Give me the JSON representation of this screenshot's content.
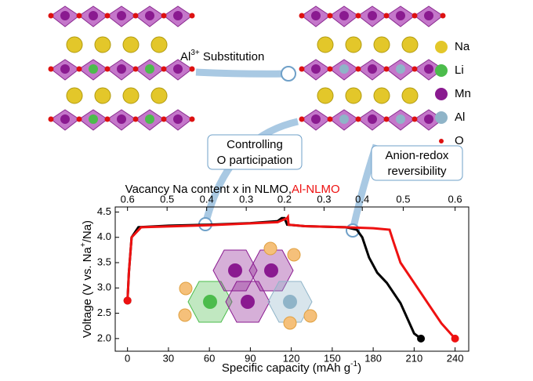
{
  "legend_atoms": [
    "Na",
    "Li",
    "Mn",
    "Al",
    "O"
  ],
  "annotations": {
    "substitution": [
      "Al",
      "3+",
      " Substitution"
    ],
    "controlling": [
      "Controlling",
      "O participation"
    ],
    "anion": [
      "Anion-redox",
      "reversibility"
    ]
  },
  "chart_data": {
    "type": "line",
    "top_axis_label": [
      "Vacancy Na content x in NLMO, ",
      "Al-NLMO"
    ],
    "xlabel": [
      "Specific capacity (mAh g",
      "-1",
      ")"
    ],
    "ylabel": [
      "Voltage (V vs. Na",
      "+",
      "/Na)"
    ],
    "xlim": [
      -9,
      250
    ],
    "ylim": [
      1.75,
      4.6
    ],
    "xticks": [
      0,
      30,
      60,
      90,
      120,
      150,
      180,
      210,
      240
    ],
    "x2ticks": [
      {
        "value": 0,
        "label": "0.6"
      },
      {
        "value": 29,
        "label": "0.5"
      },
      {
        "value": 58,
        "label": "0.4"
      },
      {
        "value": 87,
        "label": "0.3"
      },
      {
        "value": 115,
        "label": "0.2"
      },
      {
        "value": 144,
        "label": "0.3"
      },
      {
        "value": 172,
        "label": "0.4"
      },
      {
        "value": 202,
        "label": "0.5"
      },
      {
        "value": 240,
        "label": "0.6"
      }
    ],
    "yticks": [
      {
        "value": 2.0,
        "label": "2.0"
      },
      {
        "value": 2.5,
        "label": "2.5"
      },
      {
        "value": 3.0,
        "label": "3.0"
      },
      {
        "value": 3.5,
        "label": "3.5"
      },
      {
        "value": 4.0,
        "label": "4.0"
      },
      {
        "value": 4.5,
        "label": "4.5"
      }
    ],
    "series": [
      {
        "color": "#000000",
        "x": [
          0,
          1,
          3,
          8,
          30,
          60,
          90,
          110,
          113,
          115,
          117,
          130,
          160,
          168,
          172,
          177,
          183,
          190,
          200,
          210,
          215
        ],
        "values": [
          2.75,
          3.3,
          4.0,
          4.2,
          4.23,
          4.25,
          4.28,
          4.32,
          4.38,
          4.38,
          4.25,
          4.22,
          4.2,
          4.15,
          4.0,
          3.6,
          3.3,
          3.1,
          2.7,
          2.1,
          2.0
        ]
      },
      {
        "color": "#ee1111",
        "x": [
          0,
          1,
          3,
          10,
          60,
          110,
          117,
          117.5,
          118,
          130,
          160,
          180,
          192,
          195,
          200,
          210,
          220,
          230,
          240
        ],
        "values": [
          2.75,
          3.3,
          4.0,
          4.2,
          4.24,
          4.3,
          4.38,
          4.4,
          4.25,
          4.22,
          4.2,
          4.18,
          4.15,
          3.9,
          3.5,
          3.1,
          2.7,
          2.3,
          2.0
        ]
      }
    ]
  }
}
